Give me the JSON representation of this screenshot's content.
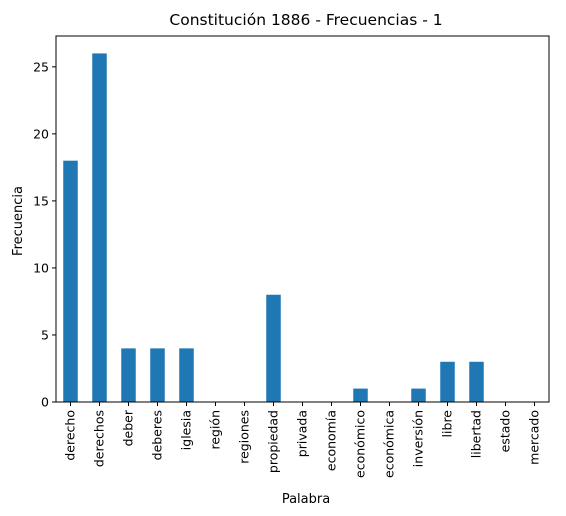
{
  "chart_data": {
    "type": "bar",
    "title": "Constitución 1886 - Frecuencias - 1",
    "xlabel": "Palabra",
    "ylabel": "Frecuencia",
    "categories": [
      "derecho",
      "derechos",
      "deber",
      "deberes",
      "iglesia",
      "región",
      "regiones",
      "propiedad",
      "privada",
      "economía",
      "económico",
      "económica",
      "inversión",
      "libre",
      "libertad",
      "estado",
      "mercado"
    ],
    "values": [
      18,
      26,
      4,
      4,
      4,
      0,
      0,
      8,
      0,
      0,
      1,
      0,
      1,
      3,
      3,
      0,
      0
    ],
    "yticks": [
      0,
      5,
      10,
      15,
      20,
      25
    ],
    "ylim": [
      0,
      27.3
    ],
    "grid": false,
    "bar_color": "#1f77b4"
  }
}
